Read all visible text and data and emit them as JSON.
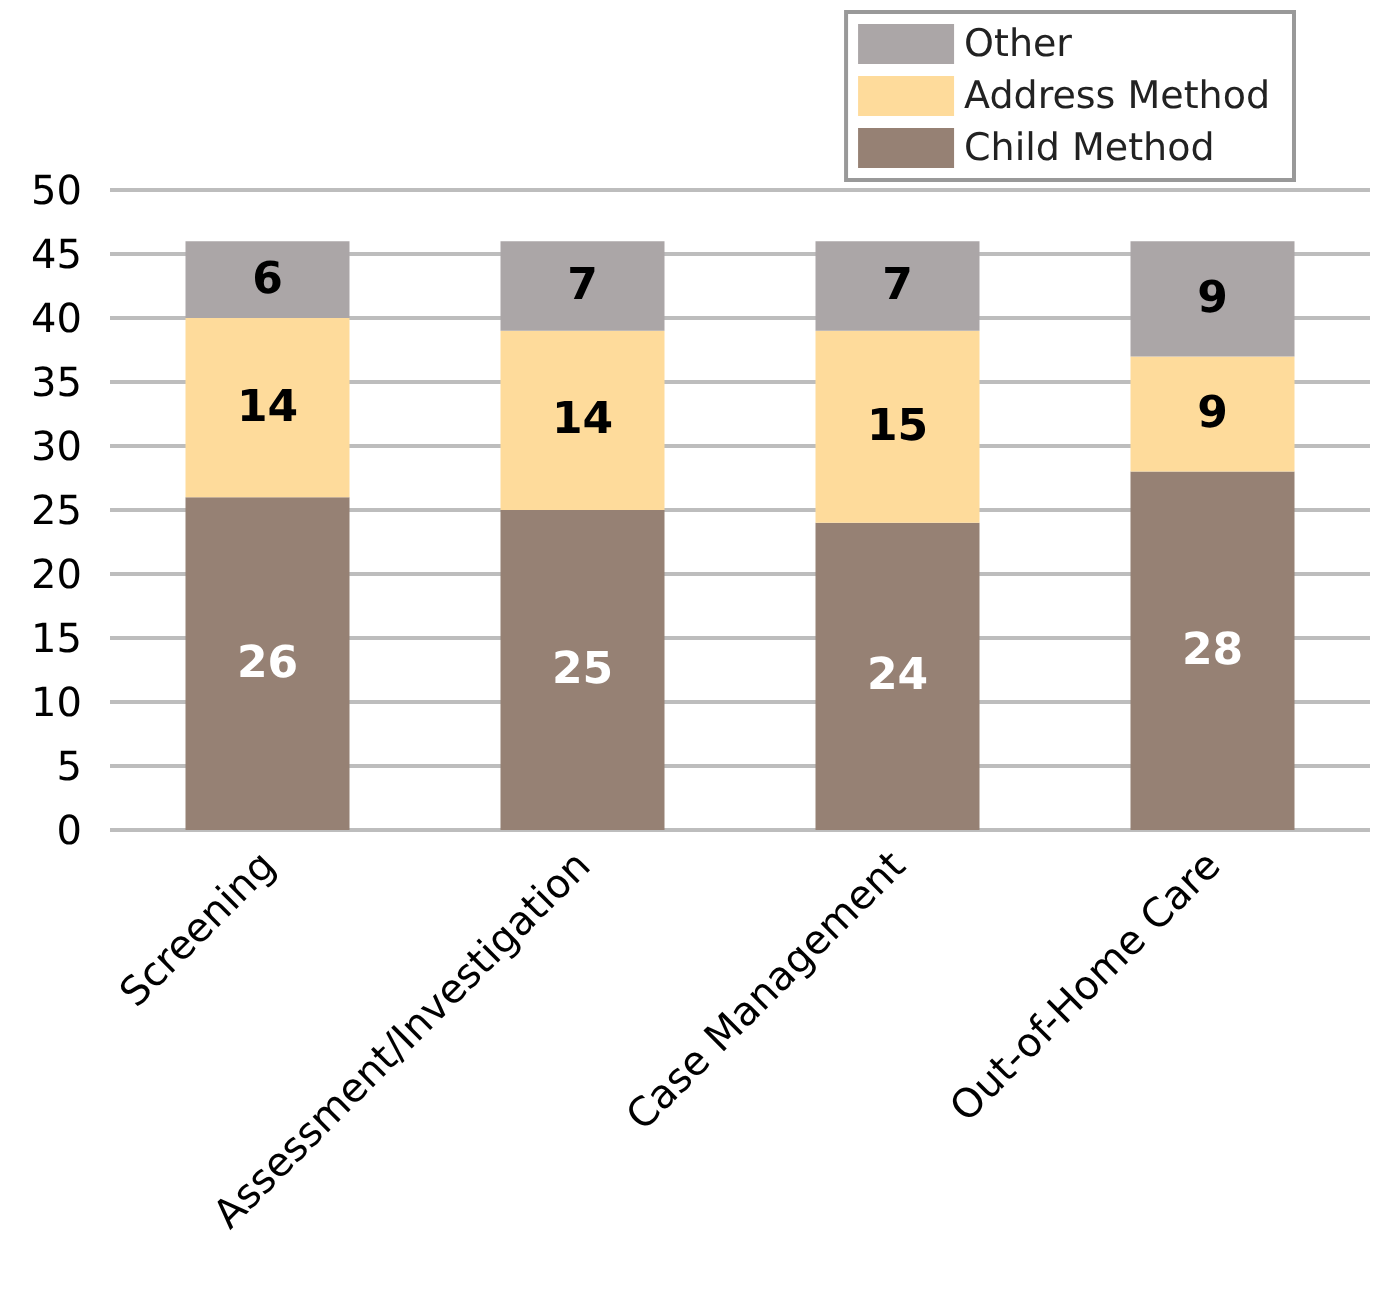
{
  "chart_data": {
    "type": "bar",
    "stacked": true,
    "categories": [
      "Screening",
      "Assessment/Investigation",
      "Case Management",
      "Out-of-Home Care"
    ],
    "series": [
      {
        "name": "Child Method",
        "color": "#968174",
        "values": [
          26,
          25,
          24,
          28
        ]
      },
      {
        "name": "Address Method",
        "color": "#fedb9b",
        "values": [
          14,
          14,
          15,
          9
        ]
      },
      {
        "name": "Other",
        "color": "#aba6a7",
        "values": [
          6,
          7,
          7,
          9
        ]
      }
    ],
    "ylim": [
      0,
      50
    ],
    "yticks": [
      0,
      5,
      10,
      15,
      20,
      25,
      30,
      35,
      40,
      45,
      50
    ],
    "grid": "y",
    "legend": "top right",
    "data_labels": true
  }
}
